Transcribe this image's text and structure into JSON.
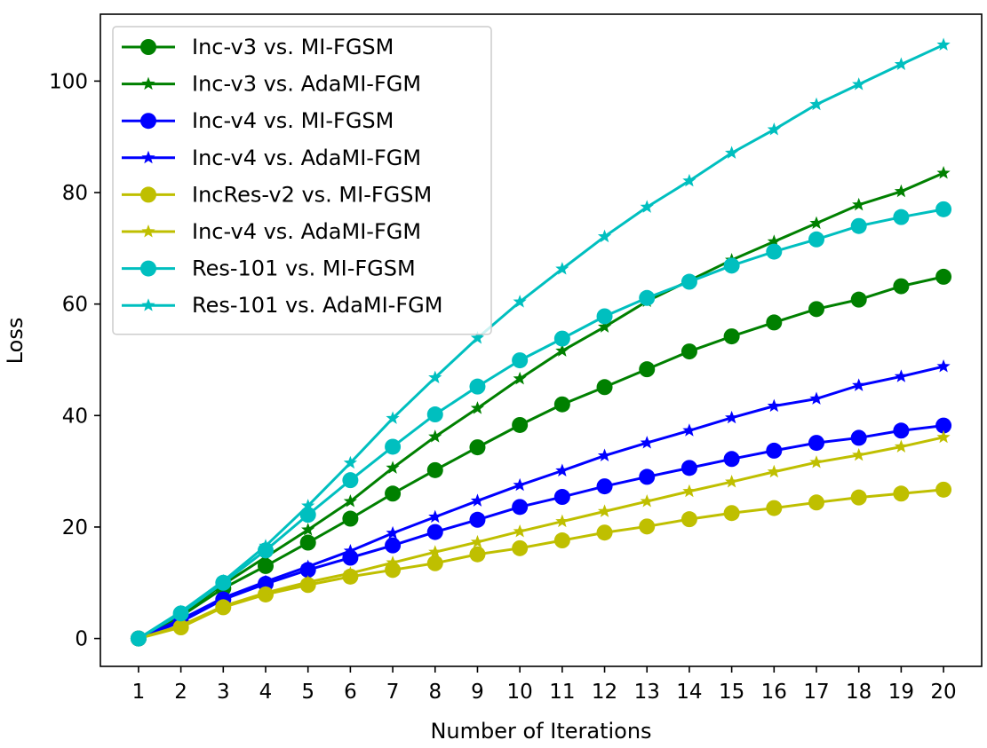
{
  "chart_data": {
    "type": "line",
    "xlabel": "Number of Iterations",
    "ylabel": "Loss",
    "x": [
      1,
      2,
      3,
      4,
      5,
      6,
      7,
      8,
      9,
      10,
      11,
      12,
      13,
      14,
      15,
      16,
      17,
      18,
      19,
      20
    ],
    "xlim": [
      0.1,
      20.9
    ],
    "ylim": [
      -5,
      112
    ],
    "yticks": [
      0,
      20,
      40,
      60,
      80,
      100
    ],
    "legend_position": "top-left",
    "grid": false,
    "series": [
      {
        "name": "Inc-v3 vs. MI-FGSM",
        "color": "#008000",
        "marker": "circle",
        "values": [
          0,
          4.0,
          9.0,
          13.0,
          17.2,
          21.5,
          26.0,
          30.2,
          34.3,
          38.3,
          42.0,
          45.1,
          48.3,
          51.5,
          54.2,
          56.7,
          59.1,
          60.8,
          63.2,
          64.9
        ]
      },
      {
        "name": "Inc-v3 vs. AdaMI-FGM",
        "color": "#008000",
        "marker": "star",
        "values": [
          0,
          4.3,
          9.7,
          14.6,
          19.5,
          24.6,
          30.6,
          36.2,
          41.3,
          46.6,
          51.6,
          55.9,
          60.5,
          64.2,
          67.9,
          71.2,
          74.5,
          77.8,
          80.2,
          83.5
        ]
      },
      {
        "name": "Inc-v4 vs. MI-FGSM",
        "color": "#0000ff",
        "marker": "circle",
        "values": [
          0,
          3.0,
          7.0,
          9.8,
          12.3,
          14.5,
          16.7,
          19.1,
          21.3,
          23.6,
          25.4,
          27.3,
          29.0,
          30.6,
          32.2,
          33.7,
          35.1,
          36.0,
          37.3,
          38.2
        ]
      },
      {
        "name": "Inc-v4 vs. AdaMI-FGM",
        "color": "#0000ff",
        "marker": "star",
        "values": [
          0,
          3.4,
          7.3,
          10.2,
          12.9,
          15.7,
          18.9,
          21.8,
          24.7,
          27.5,
          30.1,
          32.8,
          35.1,
          37.3,
          39.6,
          41.7,
          43.0,
          45.4,
          47.0,
          48.8
        ]
      },
      {
        "name": "IncRes-v2 vs. MI-FGSM",
        "color": "#bfbf00",
        "marker": "circle",
        "values": [
          0,
          2.0,
          5.6,
          7.9,
          9.6,
          11.1,
          12.3,
          13.5,
          15.1,
          16.2,
          17.6,
          19.0,
          20.1,
          21.4,
          22.5,
          23.4,
          24.4,
          25.3,
          26.0,
          26.7
        ]
      },
      {
        "name": "Inc-v4 vs. AdaMI-FGM",
        "color": "#bfbf00",
        "marker": "star",
        "values": [
          0,
          2.3,
          5.8,
          8.2,
          10.1,
          11.7,
          13.6,
          15.5,
          17.3,
          19.2,
          21.0,
          22.8,
          24.6,
          26.4,
          28.1,
          29.9,
          31.6,
          32.9,
          34.4,
          36.1
        ]
      },
      {
        "name": "Res-101 vs. MI-FGSM",
        "color": "#00bfbf",
        "marker": "circle",
        "values": [
          0,
          4.5,
          10.0,
          15.8,
          22.2,
          28.4,
          34.4,
          40.2,
          45.2,
          49.9,
          53.8,
          57.8,
          61.1,
          64.0,
          66.9,
          69.4,
          71.6,
          74.0,
          75.6,
          77.0
        ]
      },
      {
        "name": "Res-101 vs. AdaMI-FGM",
        "color": "#00bfbf",
        "marker": "star",
        "values": [
          0,
          4.8,
          10.3,
          16.6,
          23.8,
          31.5,
          39.5,
          46.8,
          53.9,
          60.4,
          66.3,
          72.1,
          77.4,
          82.1,
          87.1,
          91.3,
          95.8,
          99.4,
          103.0,
          106.5
        ]
      }
    ]
  }
}
